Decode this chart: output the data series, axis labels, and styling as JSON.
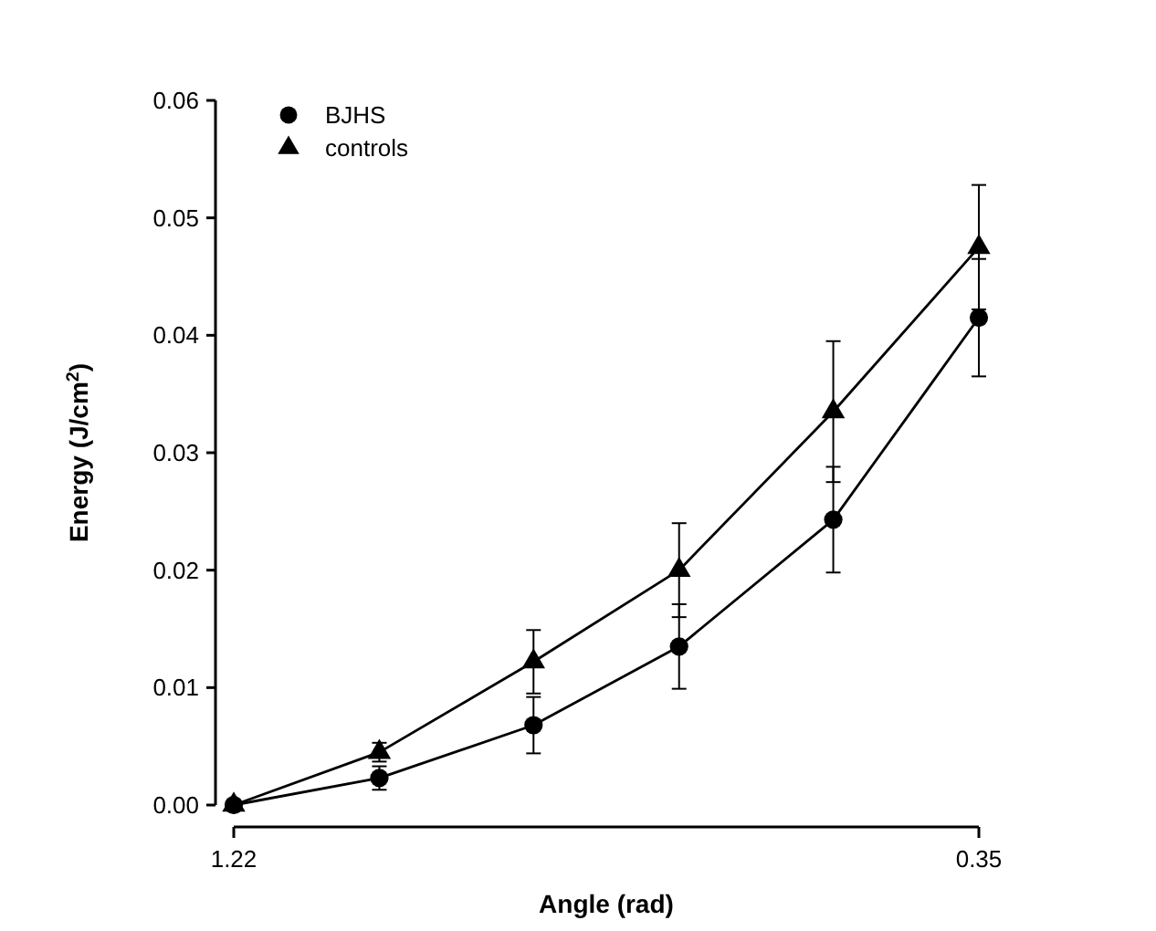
{
  "chart_data": {
    "type": "line",
    "xlabel": "Angle (rad)",
    "ylabel": "Energy (J/cm$^{2}$)",
    "x": [
      1.22,
      1.05,
      0.87,
      0.7,
      0.52,
      0.35
    ],
    "xlim": [
      1.22,
      0.35
    ],
    "xticks": [
      1.22,
      0.35
    ],
    "ylim": [
      0,
      0.06
    ],
    "yticks": [
      {
        "value": 0,
        "label": "0.00"
      },
      {
        "value": 0.01,
        "label": "0.01"
      },
      {
        "value": 0.02,
        "label": "0.02"
      },
      {
        "value": 0.03,
        "label": "0.03"
      },
      {
        "value": 0.04,
        "label": "0.04"
      },
      {
        "value": 0.05,
        "label": "0.05"
      },
      {
        "value": 0.06,
        "label": "0.06"
      }
    ],
    "series": [
      {
        "name": "BJHS",
        "color": "#000000",
        "marker": "circle",
        "values": [
          0,
          0.0023,
          0.0068,
          0.0135,
          0.0243,
          0.0415
        ],
        "errors": [
          null,
          0.001,
          0.0024,
          0.0036,
          0.0045,
          0.005
        ]
      },
      {
        "name": "controls",
        "color": "#000000",
        "marker": "triangle",
        "values": [
          0,
          0.0045,
          0.0122,
          0.02,
          0.0335,
          0.0475
        ],
        "errors": [
          null,
          0.0008,
          0.0027,
          0.004,
          0.006,
          0.0053
        ]
      }
    ],
    "legend": "top left",
    "grid": false,
    "line_style": "solid"
  }
}
